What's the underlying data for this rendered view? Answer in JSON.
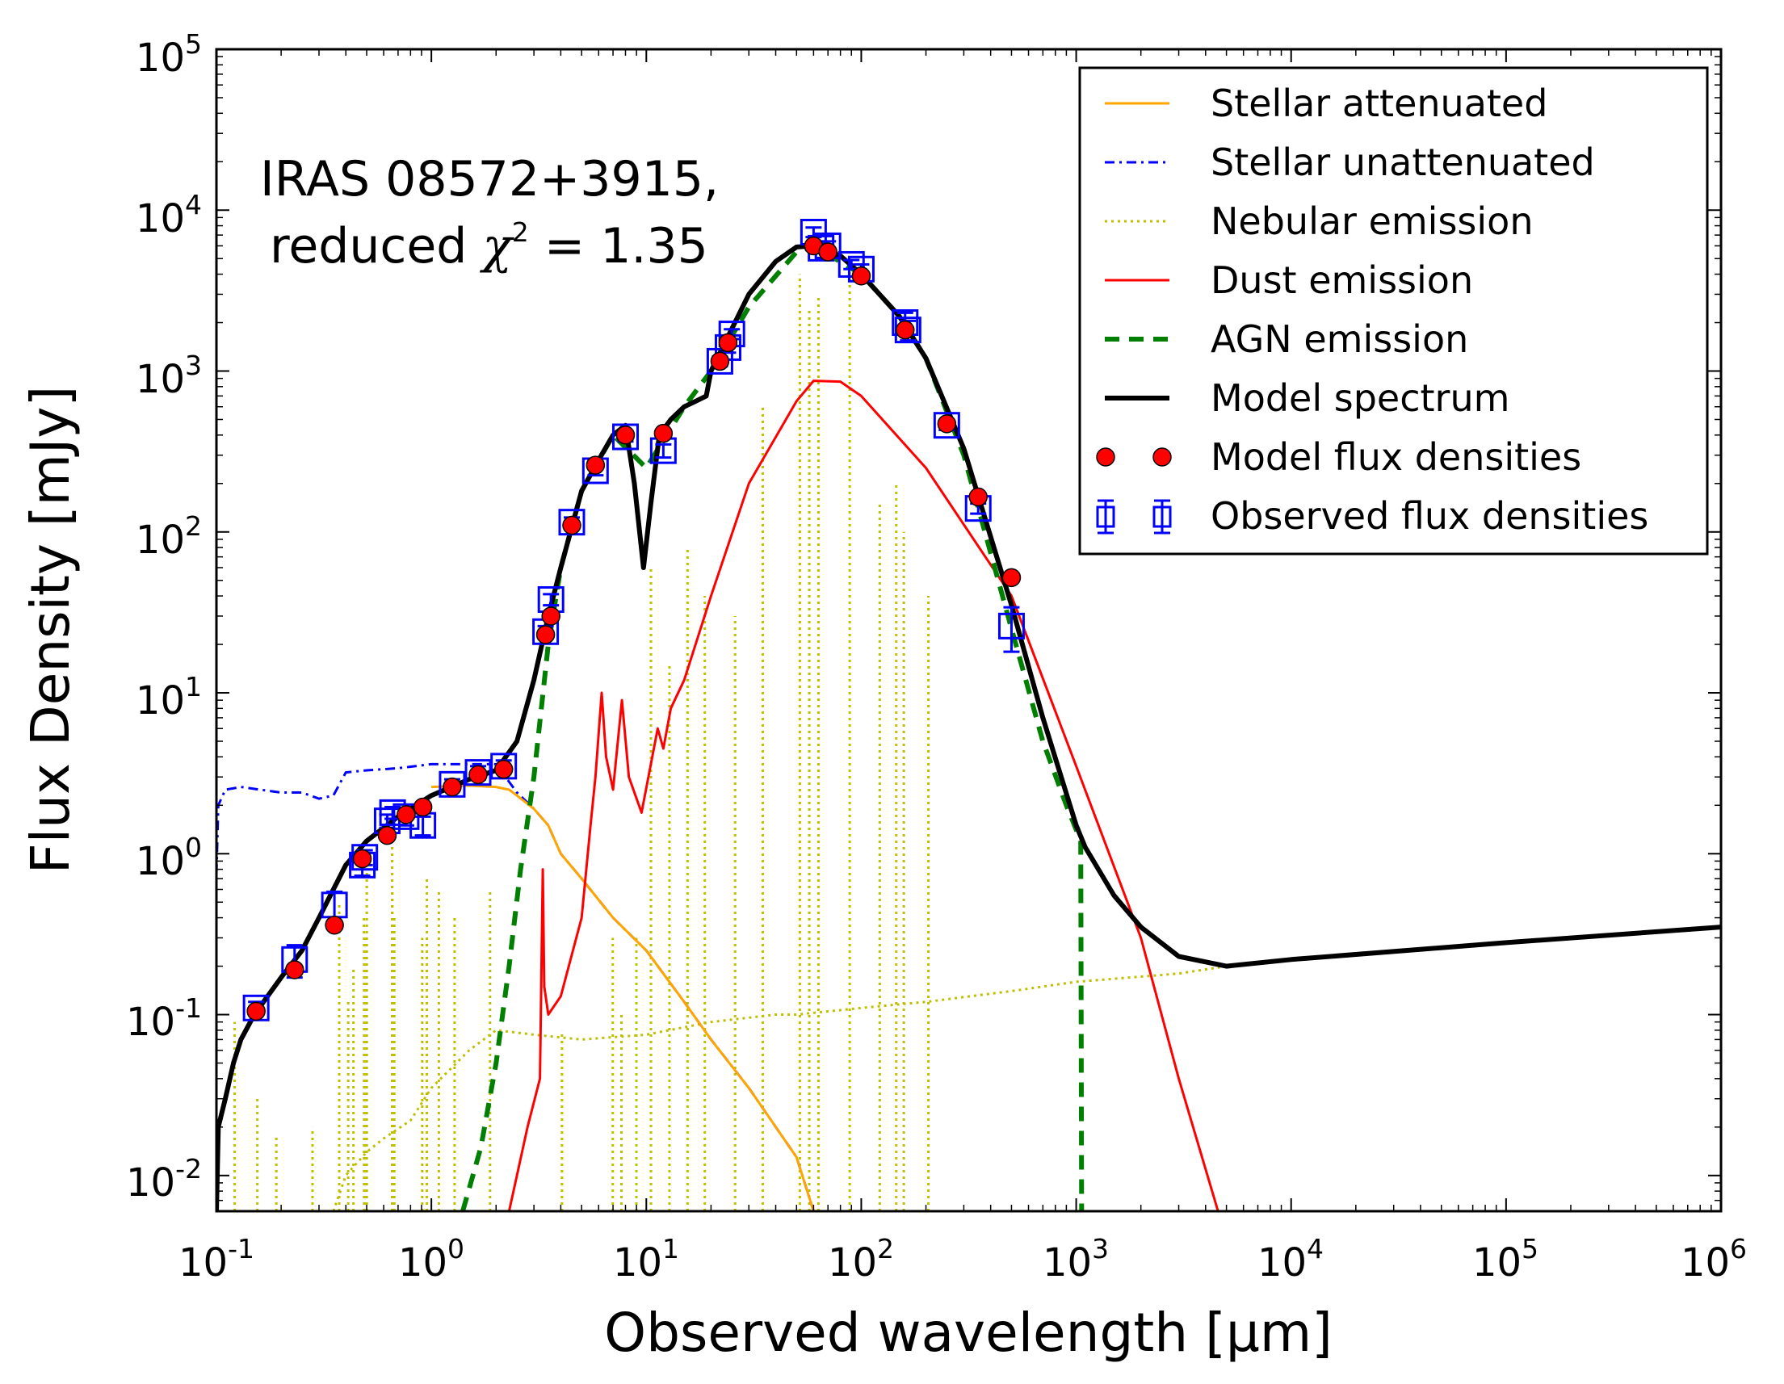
{
  "chart_data": {
    "type": "line",
    "title": "",
    "xlabel": "Observed wavelength [μm]",
    "ylabel": "Flux Density [mJy]",
    "xscale": "log",
    "yscale": "log",
    "xlim": [
      0.1,
      1000000
    ],
    "ylim": [
      0.006,
      100000
    ],
    "grid": false,
    "legend_position": "top-right",
    "x_ticks": [
      {
        "base": "10",
        "exp": "-1",
        "value": 0.1
      },
      {
        "base": "10",
        "exp": "0",
        "value": 1
      },
      {
        "base": "10",
        "exp": "1",
        "value": 10
      },
      {
        "base": "10",
        "exp": "2",
        "value": 100
      },
      {
        "base": "10",
        "exp": "3",
        "value": 1000
      },
      {
        "base": "10",
        "exp": "4",
        "value": 10000
      },
      {
        "base": "10",
        "exp": "5",
        "value": 100000
      },
      {
        "base": "10",
        "exp": "6",
        "value": 1000000
      }
    ],
    "y_ticks": [
      {
        "base": "10",
        "exp": "-2",
        "value": 0.01
      },
      {
        "base": "10",
        "exp": "-1",
        "value": 0.1
      },
      {
        "base": "10",
        "exp": "0",
        "value": 1
      },
      {
        "base": "10",
        "exp": "1",
        "value": 10
      },
      {
        "base": "10",
        "exp": "2",
        "value": 100
      },
      {
        "base": "10",
        "exp": "3",
        "value": 1000
      },
      {
        "base": "10",
        "exp": "4",
        "value": 10000
      },
      {
        "base": "10",
        "exp": "5",
        "value": 100000
      }
    ],
    "annotation": {
      "line1": "IRAS 08572+3915,",
      "line2_prefix": "reduced ",
      "line2_symbol": "χ",
      "line2_exp": "2",
      "line2_suffix": " = 1.35"
    },
    "legend": [
      {
        "key": "stellar_att",
        "label": "Stellar attenuated"
      },
      {
        "key": "stellar_unatt",
        "label": "Stellar unattenuated"
      },
      {
        "key": "nebular",
        "label": "Nebular emission"
      },
      {
        "key": "dust",
        "label": "Dust emission"
      },
      {
        "key": "agn",
        "label": "AGN emission"
      },
      {
        "key": "model",
        "label": "Model spectrum"
      },
      {
        "key": "model_flux",
        "label": "Model flux densities"
      },
      {
        "key": "obs_flux",
        "label": "Observed flux densities"
      }
    ],
    "series": [
      {
        "name": "Stellar unattenuated",
        "key": "stellar_unatt",
        "color": "#0000ff",
        "style": "dashdot",
        "width": 3,
        "points": [
          [
            0.1,
            0.75
          ],
          [
            0.102,
            2.0
          ],
          [
            0.11,
            2.5
          ],
          [
            0.13,
            2.6
          ],
          [
            0.16,
            2.5
          ],
          [
            0.2,
            2.4
          ],
          [
            0.25,
            2.4
          ],
          [
            0.3,
            2.2
          ],
          [
            0.35,
            2.3
          ],
          [
            0.4,
            3.2
          ],
          [
            0.5,
            3.3
          ],
          [
            0.7,
            3.4
          ],
          [
            1.0,
            3.6
          ],
          [
            1.5,
            3.6
          ],
          [
            2.0,
            3.6
          ],
          [
            2.5,
            2.4
          ],
          [
            3.0,
            1.9
          ],
          [
            3.5,
            1.5
          ],
          [
            4.0,
            1.0
          ],
          [
            5.0,
            0.7
          ],
          [
            7.0,
            0.4
          ],
          [
            10,
            0.25
          ],
          [
            15,
            0.12
          ],
          [
            20,
            0.07
          ],
          [
            30,
            0.035
          ],
          [
            50,
            0.013
          ],
          [
            60,
            0.006
          ]
        ]
      },
      {
        "name": "Stellar attenuated",
        "key": "stellar_att",
        "color": "#ffa500",
        "style": "solid",
        "width": 3,
        "points": [
          [
            1.0,
            2.6
          ],
          [
            1.5,
            2.65
          ],
          [
            2.0,
            2.6
          ],
          [
            2.3,
            2.5
          ],
          [
            2.5,
            2.3
          ],
          [
            3.0,
            1.9
          ],
          [
            3.5,
            1.5
          ],
          [
            4.0,
            1.0
          ],
          [
            5.0,
            0.7
          ],
          [
            7.0,
            0.4
          ],
          [
            10,
            0.25
          ],
          [
            15,
            0.12
          ],
          [
            20,
            0.07
          ],
          [
            30,
            0.035
          ],
          [
            50,
            0.013
          ],
          [
            60,
            0.006
          ]
        ]
      },
      {
        "name": "Nebular emission continuum",
        "key": "nebular",
        "color": "#bfbf00",
        "style": "dotted",
        "width": 3,
        "points": [
          [
            0.35,
            0.006
          ],
          [
            0.4,
            0.01
          ],
          [
            0.5,
            0.014
          ],
          [
            0.6,
            0.017
          ],
          [
            0.8,
            0.022
          ],
          [
            1.0,
            0.035
          ],
          [
            1.5,
            0.06
          ],
          [
            2.0,
            0.08
          ],
          [
            3.0,
            0.075
          ],
          [
            5.0,
            0.07
          ],
          [
            10,
            0.075
          ],
          [
            20,
            0.09
          ],
          [
            40,
            0.1
          ],
          [
            50,
            0.1
          ],
          [
            100,
            0.11
          ],
          [
            200,
            0.12
          ],
          [
            500,
            0.14
          ],
          [
            1000,
            0.16
          ],
          [
            3000,
            0.18
          ],
          [
            5000,
            0.2
          ]
        ]
      },
      {
        "name": "Dust emission",
        "key": "dust",
        "color": "#ff0000",
        "style": "solid",
        "width": 3,
        "points": [
          [
            2.3,
            0.006
          ],
          [
            2.8,
            0.02
          ],
          [
            3.2,
            0.04
          ],
          [
            3.3,
            0.8
          ],
          [
            3.35,
            0.15
          ],
          [
            3.5,
            0.1
          ],
          [
            4.0,
            0.13
          ],
          [
            5.0,
            0.4
          ],
          [
            5.5,
            1.5
          ],
          [
            5.8,
            3.0
          ],
          [
            6.2,
            10
          ],
          [
            6.5,
            4
          ],
          [
            7.0,
            2.5
          ],
          [
            7.7,
            9
          ],
          [
            8.3,
            3
          ],
          [
            9.5,
            1.8
          ],
          [
            11.3,
            6
          ],
          [
            12,
            4.5
          ],
          [
            13,
            8
          ],
          [
            15,
            12
          ],
          [
            20,
            40
          ],
          [
            30,
            200
          ],
          [
            50,
            650
          ],
          [
            60,
            870
          ],
          [
            80,
            860
          ],
          [
            100,
            700
          ],
          [
            200,
            250
          ],
          [
            500,
            40
          ],
          [
            1000,
            3.5
          ],
          [
            2000,
            0.3
          ],
          [
            3000,
            0.04
          ],
          [
            5000,
            0.004
          ]
        ]
      },
      {
        "name": "AGN emission",
        "key": "agn",
        "color": "#007f00",
        "style": "dashed",
        "width": 6,
        "points": [
          [
            1.4,
            0.006
          ],
          [
            1.7,
            0.015
          ],
          [
            2.0,
            0.05
          ],
          [
            2.3,
            0.2
          ],
          [
            2.6,
            0.8
          ],
          [
            3.0,
            3
          ],
          [
            3.5,
            20
          ],
          [
            4.0,
            60
          ],
          [
            5.0,
            180
          ],
          [
            7.0,
            400
          ],
          [
            10,
            250
          ],
          [
            15,
            600
          ],
          [
            20,
            1000
          ],
          [
            30,
            2500
          ],
          [
            50,
            5500
          ],
          [
            60,
            6000
          ],
          [
            100,
            4000
          ],
          [
            150,
            2200
          ],
          [
            200,
            1200
          ],
          [
            300,
            300
          ],
          [
            500,
            25
          ],
          [
            700,
            5
          ],
          [
            900,
            2
          ],
          [
            1050,
            1.2
          ],
          [
            1060,
            0.006
          ]
        ]
      },
      {
        "name": "Model spectrum",
        "key": "model",
        "color": "#000000",
        "style": "solid",
        "width": 6,
        "points": [
          [
            0.1,
            0.006
          ],
          [
            0.102,
            0.02
          ],
          [
            0.11,
            0.03
          ],
          [
            0.12,
            0.05
          ],
          [
            0.13,
            0.07
          ],
          [
            0.15,
            0.1
          ],
          [
            0.2,
            0.17
          ],
          [
            0.25,
            0.25
          ],
          [
            0.3,
            0.4
          ],
          [
            0.35,
            0.6
          ],
          [
            0.4,
            0.85
          ],
          [
            0.5,
            1.2
          ],
          [
            0.7,
            1.7
          ],
          [
            1.0,
            2.3
          ],
          [
            1.5,
            2.9
          ],
          [
            2.0,
            3.3
          ],
          [
            2.5,
            5
          ],
          [
            3.0,
            12
          ],
          [
            3.5,
            30
          ],
          [
            4.0,
            60
          ],
          [
            5.0,
            180
          ],
          [
            6.0,
            280
          ],
          [
            7.0,
            400
          ],
          [
            8.0,
            460
          ],
          [
            8.8,
            200
          ],
          [
            9.7,
            60
          ],
          [
            10.5,
            150
          ],
          [
            11.5,
            400
          ],
          [
            13,
            500
          ],
          [
            15,
            600
          ],
          [
            17,
            650
          ],
          [
            19,
            700
          ],
          [
            20,
            1000
          ],
          [
            30,
            3000
          ],
          [
            40,
            4800
          ],
          [
            50,
            5900
          ],
          [
            60,
            6000
          ],
          [
            80,
            5200
          ],
          [
            100,
            4000
          ],
          [
            150,
            2200
          ],
          [
            200,
            1200
          ],
          [
            300,
            330
          ],
          [
            500,
            35
          ],
          [
            700,
            7
          ],
          [
            1000,
            1.5
          ],
          [
            1100,
            1.1
          ],
          [
            1500,
            0.55
          ],
          [
            2000,
            0.35
          ],
          [
            3000,
            0.23
          ],
          [
            5000,
            0.2
          ],
          [
            10000,
            0.22
          ],
          [
            100000,
            0.28
          ],
          [
            1000000,
            0.35
          ]
        ]
      }
    ],
    "nebular_lines": [
      {
        "x": 0.1216,
        "y": 0.09
      },
      {
        "x": 0.155,
        "y": 0.03
      },
      {
        "x": 0.19,
        "y": 0.018
      },
      {
        "x": 0.2798,
        "y": 0.02
      },
      {
        "x": 0.3727,
        "y": 0.5
      },
      {
        "x": 0.4102,
        "y": 0.12
      },
      {
        "x": 0.434,
        "y": 0.2
      },
      {
        "x": 0.4861,
        "y": 0.4
      },
      {
        "x": 0.4959,
        "y": 0.3
      },
      {
        "x": 0.5007,
        "y": 0.8
      },
      {
        "x": 0.6563,
        "y": 1.5
      },
      {
        "x": 0.6584,
        "y": 0.6
      },
      {
        "x": 0.6724,
        "y": 0.4
      },
      {
        "x": 0.9069,
        "y": 0.3
      },
      {
        "x": 0.9532,
        "y": 0.7
      },
      {
        "x": 1.0833,
        "y": 0.6
      },
      {
        "x": 1.282,
        "y": 0.4
      },
      {
        "x": 1.875,
        "y": 0.6
      },
      {
        "x": 4.05,
        "y": 0.08
      },
      {
        "x": 6.98,
        "y": 0.3
      },
      {
        "x": 7.66,
        "y": 0.1
      },
      {
        "x": 8.99,
        "y": 0.3
      },
      {
        "x": 10.51,
        "y": 60
      },
      {
        "x": 12.81,
        "y": 15
      },
      {
        "x": 15.55,
        "y": 80
      },
      {
        "x": 18.71,
        "y": 40
      },
      {
        "x": 25.89,
        "y": 30
      },
      {
        "x": 34.8,
        "y": 600
      },
      {
        "x": 51.8,
        "y": 4000
      },
      {
        "x": 57.3,
        "y": 2500
      },
      {
        "x": 63.2,
        "y": 3000
      },
      {
        "x": 88.4,
        "y": 4200
      },
      {
        "x": 121.9,
        "y": 150
      },
      {
        "x": 145.5,
        "y": 200
      },
      {
        "x": 157.7,
        "y": 100
      },
      {
        "x": 205.2,
        "y": 40
      }
    ],
    "model_flux_densities": [
      [
        0.153,
        0.105
      ],
      [
        0.231,
        0.19
      ],
      [
        0.354,
        0.36
      ],
      [
        0.477,
        0.93
      ],
      [
        0.623,
        1.3
      ],
      [
        0.763,
        1.75
      ],
      [
        0.913,
        1.95
      ],
      [
        1.25,
        2.6
      ],
      [
        1.65,
        3.1
      ],
      [
        2.17,
        3.35
      ],
      [
        3.4,
        23
      ],
      [
        3.6,
        30
      ],
      [
        4.5,
        110
      ],
      [
        5.8,
        260
      ],
      [
        8.0,
        400
      ],
      [
        12,
        410
      ],
      [
        22,
        1150
      ],
      [
        24,
        1500
      ],
      [
        60,
        6000
      ],
      [
        70,
        5500
      ],
      [
        100,
        3900
      ],
      [
        160,
        1800
      ],
      [
        250,
        470
      ],
      [
        350,
        165
      ],
      [
        500,
        52
      ]
    ],
    "observed_flux_densities": [
      {
        "x": 0.153,
        "y": 0.11,
        "err": 0.01
      },
      {
        "x": 0.231,
        "y": 0.22,
        "err": 0.05
      },
      {
        "x": 0.354,
        "y": 0.48,
        "err": 0.1
      },
      {
        "x": 0.477,
        "y": 0.85,
        "err": 0.12
      },
      {
        "x": 0.49,
        "y": 0.95,
        "err": 0.1
      },
      {
        "x": 0.623,
        "y": 1.6,
        "err": 0.15
      },
      {
        "x": 0.66,
        "y": 1.8,
        "err": 0.15
      },
      {
        "x": 0.763,
        "y": 1.7,
        "err": 0.2
      },
      {
        "x": 0.913,
        "y": 1.5,
        "err": 0.2
      },
      {
        "x": 1.25,
        "y": 2.7,
        "err": 0.2
      },
      {
        "x": 1.65,
        "y": 3.2,
        "err": 0.3
      },
      {
        "x": 2.17,
        "y": 3.5,
        "err": 0.3
      },
      {
        "x": 3.4,
        "y": 24,
        "err": 2
      },
      {
        "x": 3.6,
        "y": 38,
        "err": 3
      },
      {
        "x": 4.5,
        "y": 115,
        "err": 8
      },
      {
        "x": 5.8,
        "y": 240,
        "err": 15
      },
      {
        "x": 8.0,
        "y": 390,
        "err": 25
      },
      {
        "x": 12,
        "y": 320,
        "err": 30
      },
      {
        "x": 22,
        "y": 1150,
        "err": 80
      },
      {
        "x": 24,
        "y": 1400,
        "err": 100
      },
      {
        "x": 25,
        "y": 1700,
        "err": 120
      },
      {
        "x": 60,
        "y": 7300,
        "err": 500
      },
      {
        "x": 65,
        "y": 5800,
        "err": 400
      },
      {
        "x": 70,
        "y": 6000,
        "err": 400
      },
      {
        "x": 90,
        "y": 4600,
        "err": 300
      },
      {
        "x": 100,
        "y": 4300,
        "err": 300
      },
      {
        "x": 160,
        "y": 2000,
        "err": 300
      },
      {
        "x": 165,
        "y": 1800,
        "err": 250
      },
      {
        "x": 250,
        "y": 460,
        "err": 30
      },
      {
        "x": 350,
        "y": 140,
        "err": 10
      },
      {
        "x": 500,
        "y": 26,
        "err": 8
      }
    ]
  }
}
